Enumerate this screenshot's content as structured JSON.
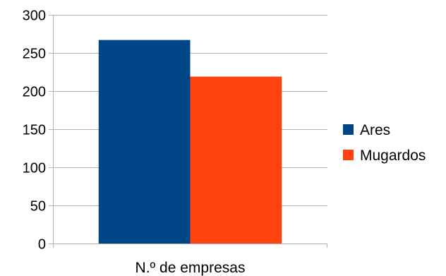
{
  "chart_data": {
    "type": "bar",
    "categories": [
      "N.º de empresas"
    ],
    "series": [
      {
        "name": "Ares",
        "values": [
          267
        ],
        "color": "#004586"
      },
      {
        "name": "Mugardos",
        "values": [
          219
        ],
        "color": "#ff420e"
      }
    ],
    "title": "",
    "xlabel": "",
    "ylabel": "",
    "ylim": [
      0,
      300
    ],
    "yticks": [
      0,
      50,
      100,
      150,
      200,
      250,
      300
    ],
    "grid": "horizontal",
    "legend": "right",
    "colors": {
      "grid": "#b3b3b3",
      "axis": "#b3b3b3"
    }
  }
}
